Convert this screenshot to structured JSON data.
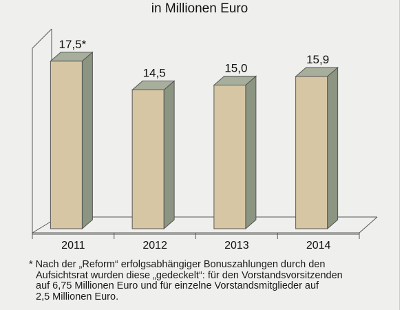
{
  "chart_data": {
    "type": "bar",
    "title": "",
    "subtitle": "in Millionen Euro",
    "categories": [
      "2011",
      "2012",
      "2013",
      "2014"
    ],
    "values": [
      17.5,
      14.5,
      15.0,
      15.9
    ],
    "data_labels": [
      "17,5*",
      "14,5",
      "15,0",
      "15,9"
    ],
    "xlabel": "",
    "ylabel": "",
    "ylim": [
      0,
      20
    ],
    "grid": false,
    "style": "3d",
    "colors": {
      "front": "#d6c6a4",
      "side": "#8b9581",
      "top": "#a7ae9b"
    }
  },
  "footnote": {
    "lines": [
      "* Nach der „Reform“ erfolgsabhängiger Bonuszahlungen durch den",
      "Aufsichtsrat wurden diese „gedeckelt“: für den Vorstandsvorsitzenden",
      "auf 6,75 Millionen Euro und für einzelne Vorstandsmitglieder auf",
      "2,5 Millionen Euro."
    ]
  }
}
